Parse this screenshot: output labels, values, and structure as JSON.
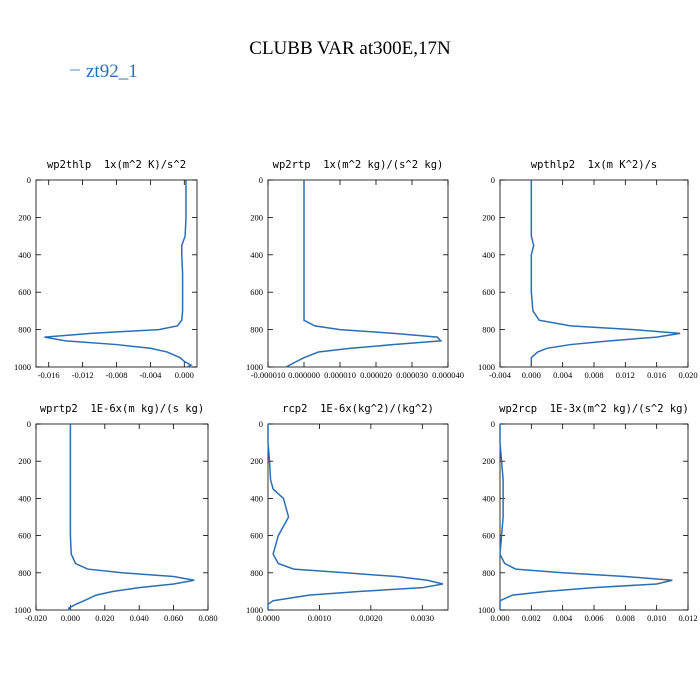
{
  "title": "CLUBB VAR at300E,17N",
  "legend": [
    {
      "name": "zt92_1",
      "color": "#2a6fb5"
    }
  ],
  "chart_data": [
    {
      "type": "line",
      "title": "wp2thlp  1x(m^2 K)/s^2",
      "y": [
        0,
        100,
        200,
        300,
        350,
        400,
        500,
        600,
        700,
        750,
        780,
        800,
        820,
        840,
        860,
        880,
        900,
        920,
        950,
        970,
        990,
        1000
      ],
      "values": [
        0.0002,
        0.0002,
        0.0002,
        0.0001,
        -0.0003,
        -0.0003,
        -0.0002,
        -0.0002,
        -0.0002,
        -0.0003,
        -0.0008,
        -0.003,
        -0.011,
        -0.0165,
        -0.014,
        -0.008,
        -0.004,
        -0.002,
        -0.0005,
        0.0,
        0.0008,
        0.0003
      ],
      "color": "#2a6fb5",
      "xlim": [
        -0.0175,
        0.0015
      ],
      "xticks": [
        -0.016,
        -0.012,
        -0.008,
        -0.004,
        {
          "value": 0,
          "label": "0.000"
        }
      ],
      "ylim": [
        0,
        1000
      ],
      "yticks": [
        0,
        200,
        400,
        600,
        800,
        1000
      ],
      "y_inverted": true
    },
    {
      "type": "line",
      "title": "wp2rtp  1x(m^2 kg)/(s^2 kg)",
      "y": [
        0,
        100,
        200,
        300,
        350,
        400,
        500,
        600,
        700,
        750,
        780,
        800,
        820,
        840,
        860,
        880,
        900,
        920,
        950,
        970,
        990,
        1000
      ],
      "values": [
        0,
        0,
        0,
        0,
        0,
        0,
        0,
        0,
        0,
        0,
        3e-06,
        1e-05,
        2.5e-05,
        3.7e-05,
        3.8e-05,
        2.5e-05,
        1.3e-05,
        4e-06,
        0,
        -2e-06,
        -4e-06,
        -5e-06
      ],
      "color": "#2a6fb5",
      "xlim": [
        -1e-05,
        4e-05
      ],
      "xticks": [
        {
          "value": -1e-05,
          "label": "-0.000010"
        },
        {
          "value": 0,
          "label": "0.000000"
        },
        {
          "value": 1e-05,
          "label": "0.000010"
        },
        {
          "value": 2e-05,
          "label": "0.000020"
        },
        {
          "value": 3e-05,
          "label": "0.000030"
        },
        {
          "value": 4e-05,
          "label": "0.000040"
        }
      ],
      "ylim": [
        0,
        1000
      ],
      "yticks": [
        0,
        200,
        400,
        600,
        800,
        1000
      ],
      "y_inverted": true
    },
    {
      "type": "line",
      "title": "wpthlp2  1x(m K^2)/s",
      "y": [
        0,
        100,
        200,
        300,
        350,
        400,
        500,
        600,
        700,
        750,
        780,
        800,
        820,
        840,
        860,
        880,
        900,
        920,
        950,
        970,
        990,
        1000
      ],
      "values": [
        0,
        0,
        0,
        0,
        0.0003,
        0,
        0,
        0,
        0.0002,
        0.001,
        0.005,
        0.013,
        0.019,
        0.016,
        0.01,
        0.005,
        0.002,
        0.0008,
        0,
        0,
        0,
        0
      ],
      "color": "#2a6fb5",
      "xlim": [
        -0.004,
        0.02
      ],
      "xticks": [
        -0.004,
        {
          "value": 0,
          "label": "0.000"
        },
        0.004,
        0.008,
        0.012,
        0.016,
        {
          "value": 0.02,
          "label": "0.020"
        }
      ],
      "ylim": [
        0,
        1000
      ],
      "yticks": [
        0,
        200,
        400,
        600,
        800,
        1000
      ],
      "y_inverted": true
    },
    {
      "type": "line",
      "title": "wprtp2  1E-6x(m kg)/(s kg)",
      "y": [
        0,
        100,
        200,
        300,
        350,
        400,
        500,
        600,
        700,
        750,
        780,
        800,
        820,
        840,
        860,
        880,
        900,
        920,
        950,
        970,
        990,
        1000
      ],
      "values": [
        0,
        0,
        0,
        0,
        0,
        0,
        0,
        0,
        0.0005,
        0.003,
        0.01,
        0.03,
        0.06,
        0.072,
        0.06,
        0.04,
        0.025,
        0.015,
        0.008,
        0.003,
        -0.001,
        0
      ],
      "color": "#2a6fb5",
      "xlim": [
        -0.02,
        0.08
      ],
      "xticks": [
        {
          "value": -0.02,
          "label": "-0.020"
        },
        {
          "value": 0,
          "label": "0.000"
        },
        {
          "value": 0.02,
          "label": "0.020"
        },
        {
          "value": 0.04,
          "label": "0.040"
        },
        {
          "value": 0.06,
          "label": "0.060"
        },
        {
          "value": 0.08,
          "label": "0.080"
        }
      ],
      "ylim": [
        0,
        1000
      ],
      "yticks": [
        0,
        200,
        400,
        600,
        800,
        1000
      ],
      "y_inverted": true
    },
    {
      "type": "line",
      "title": "rcp2  1E-6x(kg^2)/(kg^2)",
      "y": [
        0,
        100,
        200,
        300,
        350,
        400,
        500,
        600,
        700,
        750,
        780,
        800,
        820,
        840,
        860,
        880,
        900,
        920,
        950,
        970,
        990,
        1000
      ],
      "values": [
        0,
        0,
        3e-05,
        5e-05,
        0.0001,
        0.0003,
        0.0004,
        0.0002,
        0.0001,
        0.0002,
        0.0005,
        0.0015,
        0.0025,
        0.0031,
        0.0034,
        0.003,
        0.0018,
        0.0008,
        0.0001,
        0,
        0,
        0
      ],
      "color": "#2a6fb5",
      "xlim": [
        0,
        0.0035
      ],
      "xticks": [
        {
          "value": 0,
          "label": "0.0000"
        },
        {
          "value": 0.001,
          "label": "0.0010"
        },
        {
          "value": 0.002,
          "label": "0.0020"
        },
        {
          "value": 0.003,
          "label": "0.0030"
        }
      ],
      "ylim": [
        0,
        1000
      ],
      "yticks": [
        0,
        200,
        400,
        600,
        800,
        1000
      ],
      "y_inverted": true
    },
    {
      "type": "line",
      "title": "wp2rcp  1E-3x(m^2 kg)/(s^2 kg)",
      "y": [
        0,
        100,
        200,
        300,
        350,
        400,
        500,
        600,
        700,
        750,
        780,
        800,
        820,
        840,
        860,
        880,
        900,
        920,
        950,
        970,
        990,
        1000
      ],
      "values": [
        0,
        0,
        0.0001,
        0.0002,
        0.0002,
        0.0002,
        0.0002,
        0.0001,
        0,
        0.0003,
        0.001,
        0.004,
        0.008,
        0.011,
        0.01,
        0.006,
        0.003,
        0.0008,
        0,
        0,
        0,
        0
      ],
      "color": "#2a6fb5",
      "xlim": [
        0,
        0.012
      ],
      "xticks": [
        {
          "value": 0,
          "label": "0.000"
        },
        0.002,
        0.004,
        0.006,
        0.008,
        {
          "value": 0.01,
          "label": "0.010"
        },
        0.012
      ],
      "ylim": [
        0,
        1000
      ],
      "yticks": [
        0,
        200,
        400,
        600,
        800,
        1000
      ],
      "y_inverted": true
    }
  ]
}
